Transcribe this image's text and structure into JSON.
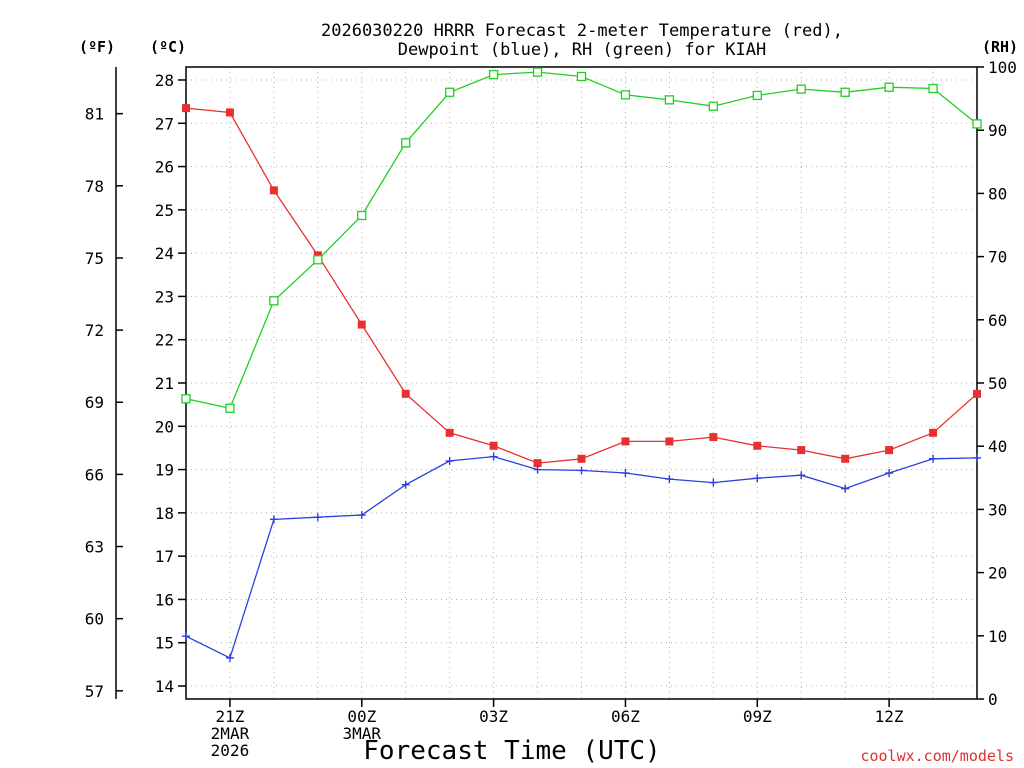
{
  "chart_data": {
    "type": "line",
    "title_line1": "2026030220 HRRR Forecast 2-meter Temperature (red),",
    "title_line2": "Dewpoint (blue), RH (green) for KIAH",
    "xlabel": "Forecast Time (UTC)",
    "left_unit_f": "(ºF)",
    "left_unit_c": "(ºC)",
    "right_unit": "(RH)",
    "watermark": "coolwx.com/models",
    "colors": {
      "temperature": "#e83030",
      "dewpoint": "#2840e0",
      "rh": "#20d020",
      "grid": "#b0b0b0",
      "axis": "#000000",
      "watermark": "#e03030"
    },
    "grid": true,
    "x_hours": [
      0,
      1,
      2,
      3,
      4,
      5,
      6,
      7,
      8,
      9,
      10,
      11,
      12,
      13,
      14,
      15,
      16,
      17,
      18
    ],
    "x_range": [
      0,
      18
    ],
    "x_ticks": [
      {
        "hour": 1,
        "lines": [
          "21Z",
          "2MAR",
          "2026"
        ]
      },
      {
        "hour": 4,
        "lines": [
          "00Z",
          "3MAR"
        ]
      },
      {
        "hour": 7,
        "lines": [
          "03Z"
        ]
      },
      {
        "hour": 10,
        "lines": [
          "06Z"
        ]
      },
      {
        "hour": 13,
        "lines": [
          "09Z"
        ]
      },
      {
        "hour": 16,
        "lines": [
          "12Z"
        ]
      }
    ],
    "celsius_axis": {
      "range": [
        13.7,
        28.3
      ],
      "ticks": [
        14,
        15,
        16,
        17,
        18,
        19,
        20,
        21,
        22,
        23,
        24,
        25,
        26,
        27,
        28
      ]
    },
    "fahrenheit_axis": {
      "ticks": [
        57,
        60,
        63,
        66,
        69,
        72,
        75,
        78,
        81
      ]
    },
    "rh_axis": {
      "range": [
        0,
        100
      ],
      "ticks": [
        0,
        10,
        20,
        30,
        40,
        50,
        60,
        70,
        80,
        90,
        100
      ]
    },
    "series": [
      {
        "key": "temperature",
        "name": "Temperature",
        "axis": "celsius",
        "marker": "filled-square",
        "values": [
          27.35,
          27.25,
          25.45,
          23.95,
          22.35,
          20.75,
          19.85,
          19.55,
          19.15,
          19.25,
          19.65,
          19.65,
          19.75,
          19.55,
          19.45,
          19.25,
          19.45,
          19.85,
          20.75
        ]
      },
      {
        "key": "dewpoint",
        "name": "Dewpoint",
        "axis": "celsius",
        "marker": "plus",
        "values": [
          15.15,
          14.65,
          17.85,
          17.9,
          17.95,
          18.65,
          19.2,
          19.3,
          19.0,
          18.98,
          18.92,
          18.78,
          18.7,
          18.8,
          18.87,
          18.56,
          18.92,
          19.25,
          19.27
        ]
      },
      {
        "key": "rh",
        "name": "RH",
        "axis": "rh",
        "marker": "open-square",
        "values": [
          47.5,
          46.0,
          63.0,
          69.5,
          76.5,
          88.0,
          96.0,
          98.8,
          99.2,
          98.5,
          95.6,
          94.8,
          93.8,
          95.5,
          96.5,
          96.0,
          96.8,
          96.6,
          91.0
        ]
      }
    ]
  }
}
